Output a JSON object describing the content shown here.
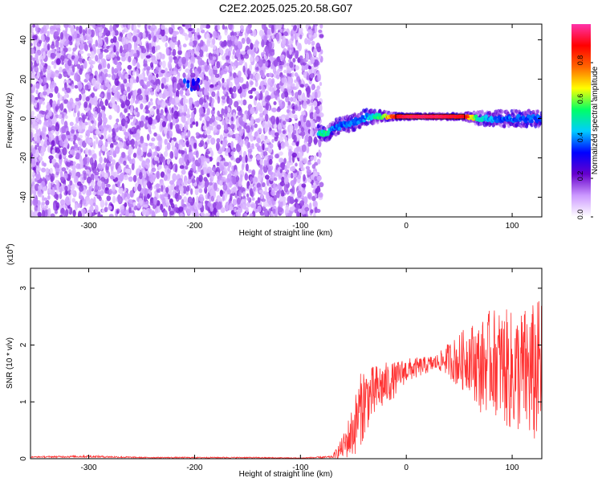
{
  "title": "C2E2.2025.025.20.58.G07",
  "chart_data": [
    {
      "type": "heatmap",
      "xlabel": "Height of straight line (km)",
      "ylabel": "Frequency (Hz)",
      "xlim": [
        -355,
        128
      ],
      "ylim": [
        -50,
        48
      ],
      "xticks": [
        -300,
        -200,
        -100,
        0,
        100
      ],
      "xtick_labels": [
        "-300",
        "-200",
        "-100",
        "0",
        "100"
      ],
      "yticks": [
        -40,
        -20,
        0,
        20,
        40
      ],
      "ytick_labels": [
        "-40",
        "-20",
        "0",
        "20",
        "40"
      ],
      "colorbar": {
        "label": "Normalized spectral amplitude",
        "range": [
          0,
          1
        ],
        "ticks": [
          0,
          0.2,
          0.4,
          0.6,
          0.8
        ],
        "tick_labels": [
          "0.0",
          "0.2",
          "0.4",
          "0.6",
          "0.8"
        ],
        "colors": [
          "#ffffff",
          "#cc99ff",
          "#6600cc",
          "#0000ff",
          "#00ccff",
          "#00ff66",
          "#ffff00",
          "#ff6600",
          "#ff0000",
          "#ff33aa"
        ]
      },
      "features": [
        {
          "kind": "noise",
          "x_range": [
            -355,
            -80
          ],
          "f_range": [
            -50,
            48
          ],
          "amplitude": 0.15
        },
        {
          "kind": "blob",
          "x_range": [
            -210,
            -195
          ],
          "f_range": [
            15,
            20
          ],
          "amplitude": 0.3
        },
        {
          "kind": "trace",
          "points": [
            [
              -83,
              -7
            ],
            [
              -75,
              -8
            ],
            [
              -68,
              -5
            ],
            [
              -60,
              -3
            ],
            [
              -50,
              -2
            ],
            [
              -42,
              0
            ],
            [
              -35,
              1
            ],
            [
              -25,
              1
            ],
            [
              -10,
              1
            ],
            [
              0,
              1
            ],
            [
              30,
              1
            ],
            [
              55,
              1
            ],
            [
              70,
              0
            ],
            [
              90,
              0
            ],
            [
              110,
              0
            ],
            [
              128,
              0
            ]
          ],
          "amplitude": [
            0.5,
            0.55,
            0.4,
            0.4,
            0.4,
            0.4,
            0.45,
            0.6,
            0.9,
            0.95,
            0.95,
            0.9,
            0.5,
            0.4,
            0.4,
            0.4
          ]
        }
      ],
      "grid": false
    },
    {
      "type": "line",
      "xlabel": "Height of straight line (km)",
      "ylabel": "SNR (10 * v/v)",
      "y_multiplier": "(x10",
      "y_multiplier_exp": "4",
      "y_multiplier_close": ")",
      "xlim": [
        -355,
        128
      ],
      "ylim": [
        0,
        3.35
      ],
      "xticks": [
        -300,
        -200,
        -100,
        0,
        100
      ],
      "xtick_labels": [
        "-300",
        "-200",
        "-100",
        "0",
        "100"
      ],
      "yticks": [
        0,
        1,
        2,
        3
      ],
      "ytick_labels": [
        "0",
        "1",
        "2",
        "3"
      ],
      "color": "#ff3333",
      "series": [
        {
          "x": [
            -355,
            -300,
            -250,
            -200,
            -150,
            -100,
            -70,
            -60,
            -50,
            -45,
            -40,
            -35,
            -30,
            -25,
            -20,
            -15,
            -10,
            -5,
            0,
            10,
            20,
            30,
            40,
            50,
            60,
            70,
            80,
            90,
            100,
            110,
            120,
            128
          ],
          "y": [
            0.03,
            0.04,
            0.02,
            0.02,
            0.02,
            0.01,
            0.03,
            0.2,
            0.5,
            0.8,
            1.0,
            1.1,
            1.15,
            1.25,
            1.3,
            1.35,
            1.4,
            1.5,
            1.55,
            1.6,
            1.65,
            1.7,
            1.75,
            1.7,
            1.8,
            1.6,
            1.75,
            1.65,
            1.5,
            1.55,
            1.45,
            1.65
          ],
          "spread": [
            0.01,
            0.02,
            0.01,
            0.01,
            0.01,
            0.01,
            0.02,
            0.2,
            0.5,
            0.6,
            0.7,
            0.5,
            0.5,
            0.45,
            0.4,
            0.35,
            0.3,
            0.25,
            0.22,
            0.18,
            0.15,
            0.15,
            0.3,
            0.5,
            0.6,
            0.8,
            0.9,
            1.0,
            1.1,
            1.1,
            1.3,
            1.2
          ]
        }
      ],
      "grid": false
    }
  ]
}
